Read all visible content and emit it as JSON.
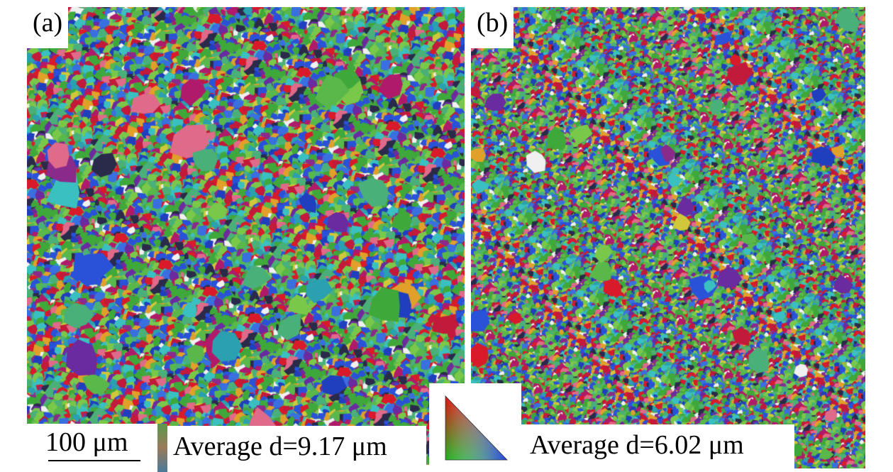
{
  "panels": [
    {
      "id": "a",
      "label": "(a)",
      "average_text": "Average d=9.17 μm",
      "average_grain_size_um": 9.17
    },
    {
      "id": "b",
      "label": "(b)",
      "average_text": "Average d=6.02 μm",
      "average_grain_size_um": 6.02
    }
  ],
  "scale_bar": {
    "label": "100 μm"
  },
  "colors": {
    "grain_palette": [
      "#1f3fbf",
      "#2a52d9",
      "#3a6fe0",
      "#d91a2a",
      "#c21a3a",
      "#b01a6a",
      "#8a2a8a",
      "#6a2aa0",
      "#3fa83a",
      "#5ab84a",
      "#7ac84a",
      "#4ab07a",
      "#3ac0c0",
      "#2aa0b0",
      "#d0c83a",
      "#e0a02a",
      "#e06a8a",
      "#f0f0f0",
      "#2a2a4a"
    ],
    "legend_corners": [
      "#e01010",
      "#20b020",
      "#2040e0"
    ]
  }
}
